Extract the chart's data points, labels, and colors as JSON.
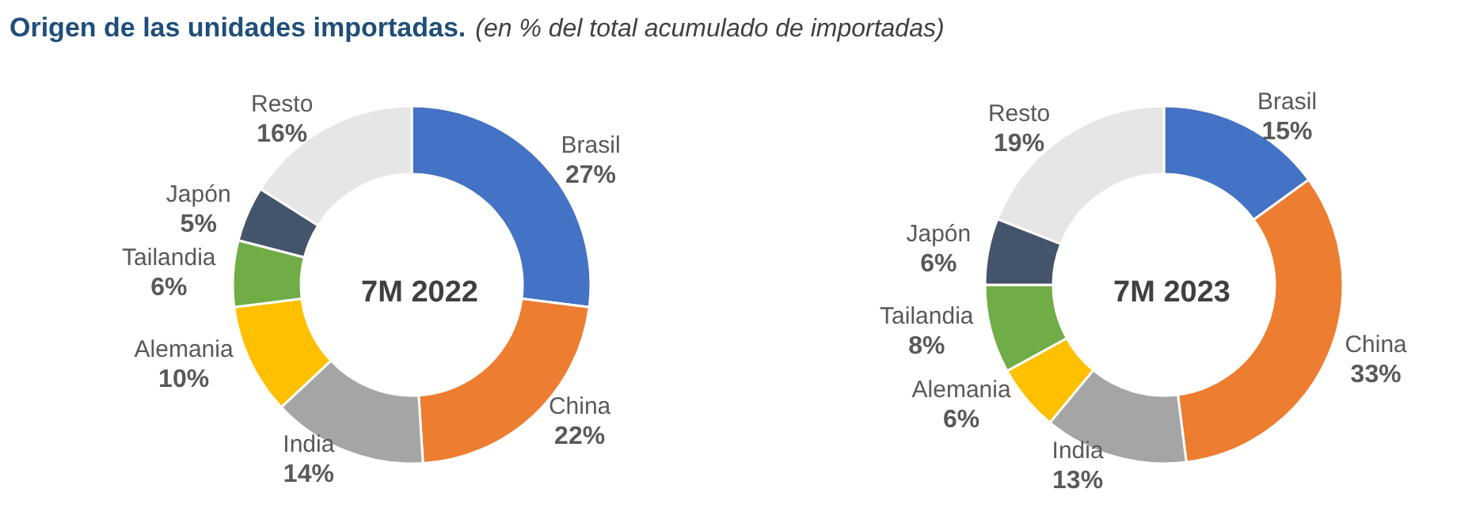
{
  "chart_data": [
    {
      "type": "donut",
      "title": "Origen de las unidades importadas.",
      "subtitle": "(en % del total acumulado de importadas)",
      "annotations": [
        "7M 2022"
      ],
      "categories": [
        "Brasil",
        "China",
        "India",
        "Alemania",
        "Tailandia",
        "Japón",
        "Resto"
      ],
      "values": [
        27,
        22,
        14,
        10,
        6,
        5,
        16
      ],
      "value_labels": [
        "27%",
        "22%",
        "14%",
        "10%",
        "6%",
        "5%",
        "16%"
      ],
      "colors": [
        "#4472c4",
        "#ed7d31",
        "#a5a5a5",
        "#ffc000",
        "#70ad47",
        "#44546a",
        "#e7e6e6"
      ],
      "legend": false
    },
    {
      "type": "donut",
      "annotations": [
        "7M 2023"
      ],
      "categories": [
        "Brasil",
        "China",
        "India",
        "Alemania",
        "Tailandia",
        "Japón",
        "Resto"
      ],
      "values": [
        15,
        33,
        13,
        6,
        8,
        6,
        19
      ],
      "value_labels": [
        "15%",
        "33%",
        "13%",
        "6%",
        "8%",
        "6%",
        "19%"
      ],
      "colors": [
        "#4472c4",
        "#ed7d31",
        "#a5a5a5",
        "#ffc000",
        "#70ad47",
        "#44546a",
        "#e7e6e6"
      ],
      "legend": false
    }
  ]
}
